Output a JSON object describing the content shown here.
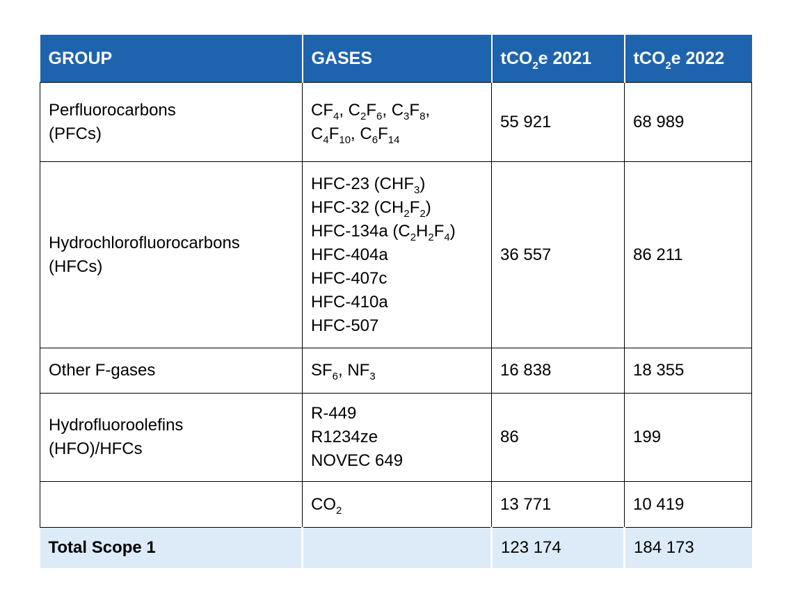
{
  "table": {
    "columns": [
      {
        "label": "GROUP"
      },
      {
        "label": "GASES"
      },
      {
        "label": "tCO~2~e 2021"
      },
      {
        "label": "tCO~2~e 2022"
      }
    ],
    "rows": [
      {
        "group_lines": [
          "Perfluorocarbons",
          "(PFCs)"
        ],
        "gas_lines": [
          "CF~4~, C~2~F~6~, C~3~F~8~,",
          "C~4~F~10~, C~6~F~14~"
        ],
        "tco2e_2021": "55 921",
        "tco2e_2022": "68 989"
      },
      {
        "group_lines": [
          "Hydrochlorofluorocarbons",
          "(HFCs)"
        ],
        "gas_lines": [
          "HFC-23 (CHF~3~)",
          "HFC-32 (CH~2~F~2~)",
          "HFC-134a (C~2~H~2~F~4~)",
          "HFC-404a",
          "HFC-407c",
          "HFC-410a",
          "HFC-507"
        ],
        "tco2e_2021": "36 557",
        "tco2e_2022": "86 211"
      },
      {
        "group_lines": [
          "Other F-gases"
        ],
        "gas_lines": [
          "SF~6~, NF~3~"
        ],
        "tco2e_2021": "16 838",
        "tco2e_2022": "18 355"
      },
      {
        "group_lines": [
          "Hydrofluoroolefins",
          "(HFO)/HFCs"
        ],
        "gas_lines": [
          "R-449",
          "R1234ze",
          "NOVEC 649"
        ],
        "tco2e_2021": "86",
        "tco2e_2022": "199"
      },
      {
        "group_lines": [],
        "gas_lines": [
          "CO~2~"
        ],
        "tco2e_2021": "13 771",
        "tco2e_2022": "10 419"
      }
    ],
    "total_row": {
      "label": "Total Scope 1",
      "tco2e_2021": "123 174",
      "tco2e_2022": "184 173"
    },
    "colors": {
      "header_bg": "#1E63AE",
      "header_text": "#FFFFFF",
      "total_bg": "#DCEBF7",
      "body_text": "#000000",
      "border": "#000000"
    }
  }
}
